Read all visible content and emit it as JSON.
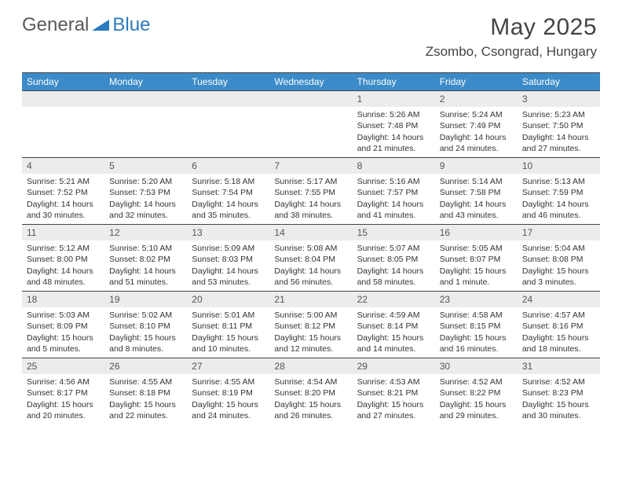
{
  "logo": {
    "text1": "General",
    "text2": "Blue",
    "color1": "#5a5a5a",
    "color2": "#2b7bbf"
  },
  "title": {
    "month": "May 2025",
    "location": "Zsombo, Csongrad, Hungary"
  },
  "colors": {
    "header_bg": "#3b8bc8",
    "header_text": "#ffffff",
    "daynum_bg": "#ececec",
    "daynum_text": "#555555",
    "body_text": "#333333",
    "rule": "#444444"
  },
  "weekdays": [
    "Sunday",
    "Monday",
    "Tuesday",
    "Wednesday",
    "Thursday",
    "Friday",
    "Saturday"
  ],
  "weeks": [
    [
      {
        "n": "",
        "sunrise": "",
        "sunset": "",
        "daylight": ""
      },
      {
        "n": "",
        "sunrise": "",
        "sunset": "",
        "daylight": ""
      },
      {
        "n": "",
        "sunrise": "",
        "sunset": "",
        "daylight": ""
      },
      {
        "n": "",
        "sunrise": "",
        "sunset": "",
        "daylight": ""
      },
      {
        "n": "1",
        "sunrise": "5:26 AM",
        "sunset": "7:48 PM",
        "daylight": "14 hours and 21 minutes."
      },
      {
        "n": "2",
        "sunrise": "5:24 AM",
        "sunset": "7:49 PM",
        "daylight": "14 hours and 24 minutes."
      },
      {
        "n": "3",
        "sunrise": "5:23 AM",
        "sunset": "7:50 PM",
        "daylight": "14 hours and 27 minutes."
      }
    ],
    [
      {
        "n": "4",
        "sunrise": "5:21 AM",
        "sunset": "7:52 PM",
        "daylight": "14 hours and 30 minutes."
      },
      {
        "n": "5",
        "sunrise": "5:20 AM",
        "sunset": "7:53 PM",
        "daylight": "14 hours and 32 minutes."
      },
      {
        "n": "6",
        "sunrise": "5:18 AM",
        "sunset": "7:54 PM",
        "daylight": "14 hours and 35 minutes."
      },
      {
        "n": "7",
        "sunrise": "5:17 AM",
        "sunset": "7:55 PM",
        "daylight": "14 hours and 38 minutes."
      },
      {
        "n": "8",
        "sunrise": "5:16 AM",
        "sunset": "7:57 PM",
        "daylight": "14 hours and 41 minutes."
      },
      {
        "n": "9",
        "sunrise": "5:14 AM",
        "sunset": "7:58 PM",
        "daylight": "14 hours and 43 minutes."
      },
      {
        "n": "10",
        "sunrise": "5:13 AM",
        "sunset": "7:59 PM",
        "daylight": "14 hours and 46 minutes."
      }
    ],
    [
      {
        "n": "11",
        "sunrise": "5:12 AM",
        "sunset": "8:00 PM",
        "daylight": "14 hours and 48 minutes."
      },
      {
        "n": "12",
        "sunrise": "5:10 AM",
        "sunset": "8:02 PM",
        "daylight": "14 hours and 51 minutes."
      },
      {
        "n": "13",
        "sunrise": "5:09 AM",
        "sunset": "8:03 PM",
        "daylight": "14 hours and 53 minutes."
      },
      {
        "n": "14",
        "sunrise": "5:08 AM",
        "sunset": "8:04 PM",
        "daylight": "14 hours and 56 minutes."
      },
      {
        "n": "15",
        "sunrise": "5:07 AM",
        "sunset": "8:05 PM",
        "daylight": "14 hours and 58 minutes."
      },
      {
        "n": "16",
        "sunrise": "5:05 AM",
        "sunset": "8:07 PM",
        "daylight": "15 hours and 1 minute."
      },
      {
        "n": "17",
        "sunrise": "5:04 AM",
        "sunset": "8:08 PM",
        "daylight": "15 hours and 3 minutes."
      }
    ],
    [
      {
        "n": "18",
        "sunrise": "5:03 AM",
        "sunset": "8:09 PM",
        "daylight": "15 hours and 5 minutes."
      },
      {
        "n": "19",
        "sunrise": "5:02 AM",
        "sunset": "8:10 PM",
        "daylight": "15 hours and 8 minutes."
      },
      {
        "n": "20",
        "sunrise": "5:01 AM",
        "sunset": "8:11 PM",
        "daylight": "15 hours and 10 minutes."
      },
      {
        "n": "21",
        "sunrise": "5:00 AM",
        "sunset": "8:12 PM",
        "daylight": "15 hours and 12 minutes."
      },
      {
        "n": "22",
        "sunrise": "4:59 AM",
        "sunset": "8:14 PM",
        "daylight": "15 hours and 14 minutes."
      },
      {
        "n": "23",
        "sunrise": "4:58 AM",
        "sunset": "8:15 PM",
        "daylight": "15 hours and 16 minutes."
      },
      {
        "n": "24",
        "sunrise": "4:57 AM",
        "sunset": "8:16 PM",
        "daylight": "15 hours and 18 minutes."
      }
    ],
    [
      {
        "n": "25",
        "sunrise": "4:56 AM",
        "sunset": "8:17 PM",
        "daylight": "15 hours and 20 minutes."
      },
      {
        "n": "26",
        "sunrise": "4:55 AM",
        "sunset": "8:18 PM",
        "daylight": "15 hours and 22 minutes."
      },
      {
        "n": "27",
        "sunrise": "4:55 AM",
        "sunset": "8:19 PM",
        "daylight": "15 hours and 24 minutes."
      },
      {
        "n": "28",
        "sunrise": "4:54 AM",
        "sunset": "8:20 PM",
        "daylight": "15 hours and 26 minutes."
      },
      {
        "n": "29",
        "sunrise": "4:53 AM",
        "sunset": "8:21 PM",
        "daylight": "15 hours and 27 minutes."
      },
      {
        "n": "30",
        "sunrise": "4:52 AM",
        "sunset": "8:22 PM",
        "daylight": "15 hours and 29 minutes."
      },
      {
        "n": "31",
        "sunrise": "4:52 AM",
        "sunset": "8:23 PM",
        "daylight": "15 hours and 30 minutes."
      }
    ]
  ],
  "labels": {
    "sunrise_prefix": "Sunrise: ",
    "sunset_prefix": "Sunset: ",
    "daylight_prefix": "Daylight: "
  }
}
